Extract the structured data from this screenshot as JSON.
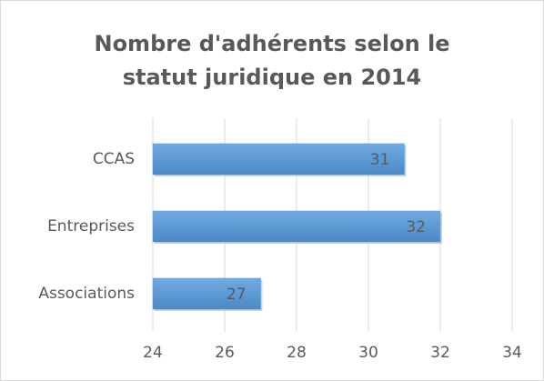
{
  "chart_data": {
    "type": "hbar",
    "title": "Nombre d'adhérents selon le statut juridique en 2014",
    "categories": [
      "CCAS",
      "Entreprises",
      "Associations"
    ],
    "values": [
      31,
      32,
      27
    ],
    "color": "#5b9bd5",
    "xlim": [
      24,
      34
    ],
    "xticks": [
      24,
      26,
      28,
      30,
      32,
      34
    ],
    "grid": true
  }
}
